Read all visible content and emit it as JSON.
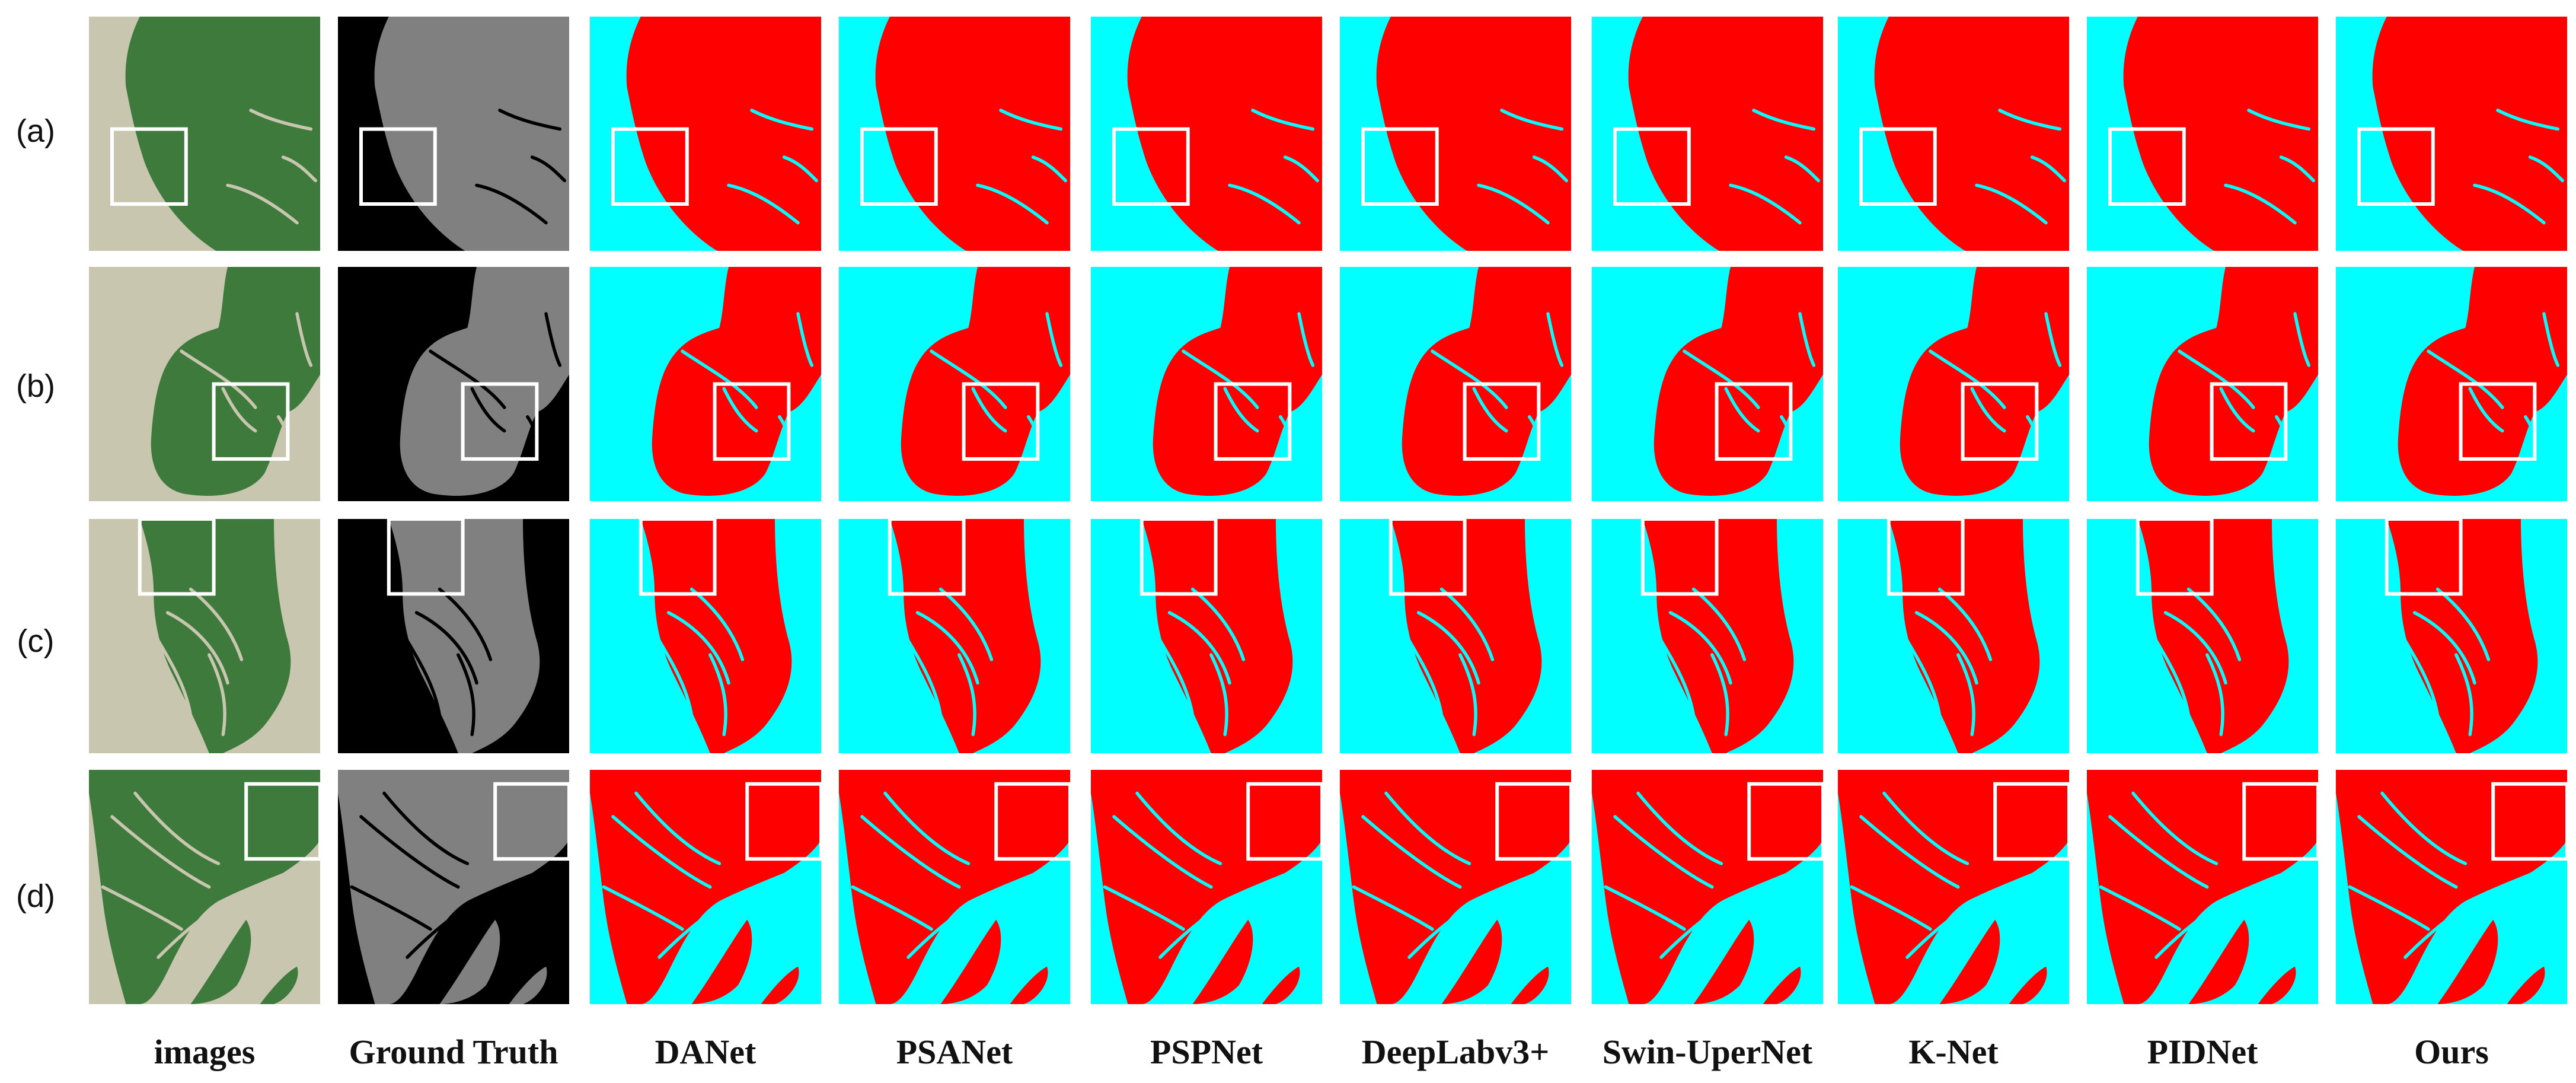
{
  "figure": {
    "row_labels": [
      "(a)",
      "(b)",
      "(c)",
      "(d)"
    ],
    "column_labels": [
      "images",
      "Ground Truth",
      "DANet",
      "PSANet",
      "PSPNet",
      "DeepLabv3+",
      "Swin-UperNet",
      "K-Net",
      "PIDNet",
      "Ours"
    ],
    "colors": {
      "prediction_foreground": "#ff0000",
      "prediction_background": "#00ffff",
      "ground_truth_foreground": "#808080",
      "ground_truth_background": "#000000",
      "highlight_box": "#ffffff",
      "photo_land": "#3e7a3c",
      "photo_water": "#c9c6b0"
    }
  }
}
